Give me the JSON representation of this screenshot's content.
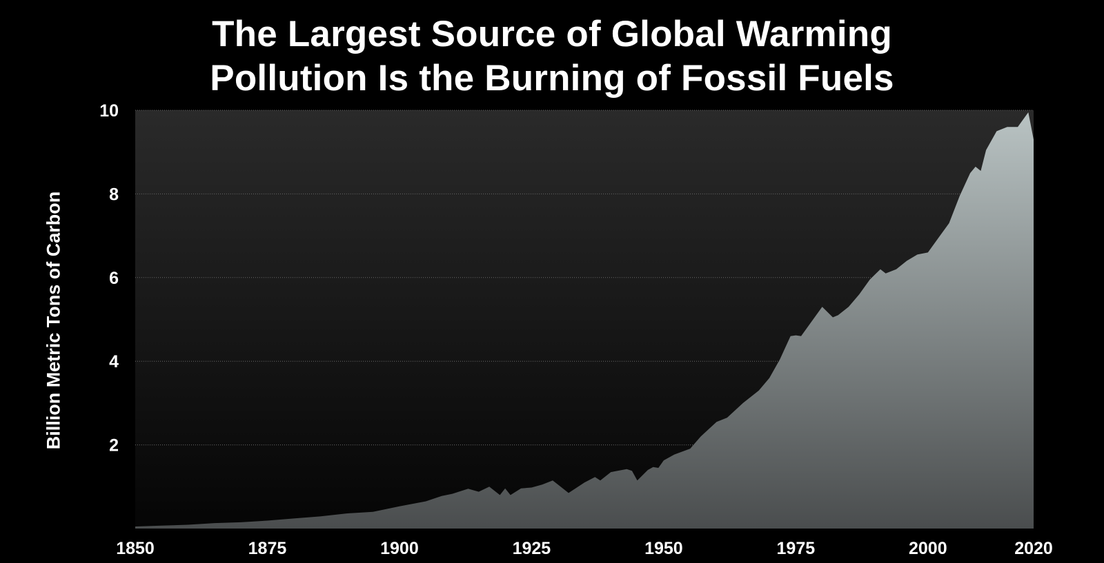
{
  "chart_data": {
    "type": "area",
    "title": [
      "The Largest Source of Global Warming",
      "Pollution Is the Burning of Fossil Fuels"
    ],
    "xlabel": "",
    "ylabel": "Billion Metric Tons of Carbon",
    "xlim": [
      1850,
      2020
    ],
    "ylim": [
      0,
      10
    ],
    "x_ticks": [
      1850,
      1875,
      1900,
      1925,
      1950,
      1975,
      2000,
      2020
    ],
    "y_ticks": [
      2,
      4,
      6,
      8,
      10
    ],
    "grid": true,
    "colors": {
      "background": "#000000",
      "plot_top": "#2a2a2a",
      "plot_bottom": "#050505",
      "area_top": "#b9c3c3",
      "area_bottom": "#4a4d4e",
      "grid": "#6a6a6a",
      "text": "#ffffff"
    },
    "series": [
      {
        "x": [
          1850,
          1855,
          1860,
          1865,
          1870,
          1875,
          1880,
          1885,
          1890,
          1895,
          1900,
          1905,
          1908,
          1910,
          1913,
          1915,
          1917,
          1919,
          1920,
          1921,
          1923,
          1925,
          1927,
          1929,
          1930,
          1932,
          1935,
          1937,
          1938,
          1940,
          1943,
          1944,
          1945,
          1947,
          1948,
          1949,
          1950,
          1952,
          1955,
          1957,
          1960,
          1962,
          1965,
          1968,
          1970,
          1972,
          1974,
          1975,
          1976,
          1978,
          1980,
          1982,
          1983,
          1985,
          1987,
          1989,
          1991,
          1992,
          1994,
          1996,
          1998,
          2000,
          2002,
          2004,
          2006,
          2008,
          2009,
          2010,
          2011,
          2013,
          2015,
          2017,
          2019,
          2020
        ],
        "y": [
          0.05,
          0.07,
          0.09,
          0.13,
          0.15,
          0.19,
          0.24,
          0.29,
          0.36,
          0.4,
          0.53,
          0.65,
          0.78,
          0.83,
          0.95,
          0.88,
          1.0,
          0.8,
          0.96,
          0.8,
          0.96,
          0.98,
          1.05,
          1.15,
          1.05,
          0.85,
          1.1,
          1.23,
          1.15,
          1.35,
          1.42,
          1.38,
          1.15,
          1.4,
          1.47,
          1.45,
          1.63,
          1.77,
          1.91,
          2.2,
          2.55,
          2.65,
          3.0,
          3.3,
          3.6,
          4.05,
          4.6,
          4.62,
          4.6,
          4.95,
          5.3,
          5.05,
          5.1,
          5.3,
          5.6,
          5.95,
          6.2,
          6.1,
          6.2,
          6.4,
          6.55,
          6.6,
          6.95,
          7.3,
          7.95,
          8.5,
          8.65,
          8.55,
          9.05,
          9.5,
          9.6,
          9.6,
          9.95,
          9.3
        ]
      }
    ]
  }
}
